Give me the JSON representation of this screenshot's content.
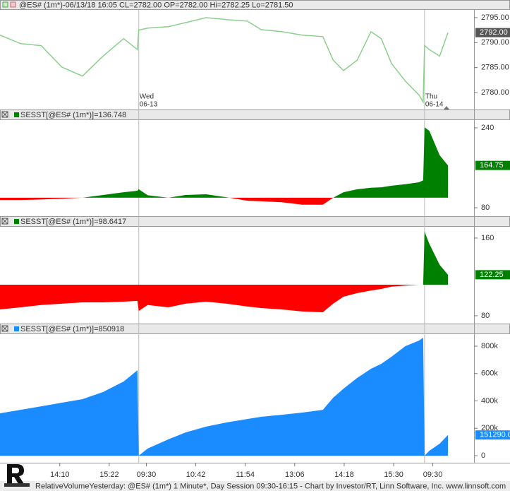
{
  "chart_data": [
    {
      "type": "line",
      "title": "@ES# (1m*)-06/13/18 16:05 CL=2782.00 OP=2782.00 Hi=2782.25 Lo=2781.50",
      "x": [
        0,
        30,
        60,
        90,
        120,
        150,
        180,
        200,
        202,
        215,
        245,
        270,
        300,
        330,
        360,
        380,
        410,
        440,
        470,
        485,
        500,
        520,
        540,
        555,
        570,
        590,
        610,
        616,
        618,
        625,
        640,
        652
      ],
      "values": [
        2791.5,
        2789.8,
        2789.4,
        2785.1,
        2783.3,
        2787.3,
        2790.8,
        2788.6,
        2792.5,
        2792.9,
        2793.2,
        2794.0,
        2795.0,
        2794.6,
        2794.3,
        2792.6,
        2792.2,
        2791.5,
        2791.2,
        2786.5,
        2784.4,
        2786.5,
        2792.2,
        2790.8,
        2785.8,
        2782.3,
        2779.5,
        2778.1,
        2789.4,
        2788.6,
        2787.3,
        2792
      ],
      "value_labels": [
        null,
        null,
        null,
        null,
        null,
        null,
        null,
        null,
        null,
        null,
        null,
        null,
        null,
        null,
        null,
        null,
        null,
        null,
        null,
        null,
        null,
        null,
        null,
        null,
        null,
        null,
        null,
        null,
        null,
        null,
        null,
        "2792.00"
      ],
      "color": "#8ccf8c",
      "label_color": "#555555",
      "ylim": [
        2776.75,
        2796.55
      ],
      "yticks": [
        {
          "value": 2795,
          "label": "2795.00"
        },
        {
          "value": 2790,
          "label": "2790.00"
        },
        {
          "value": 2785,
          "label": "2785.00"
        },
        {
          "value": 2780,
          "label": "2780.00"
        }
      ],
      "annotations": [
        {
          "x": 202,
          "text": [
            "Wed",
            "06-13"
          ]
        },
        {
          "x": 618,
          "text": [
            "Thu",
            "06-14"
          ]
        }
      ]
    },
    {
      "type": "area",
      "title": "SESST[@ES# (1m*)]=136.748",
      "x": [
        0,
        30,
        60,
        90,
        120,
        150,
        180,
        200,
        202,
        215,
        245,
        270,
        300,
        330,
        360,
        380,
        410,
        440,
        470,
        485,
        500,
        520,
        540,
        555,
        570,
        590,
        610,
        616,
        618,
        625,
        640,
        652
      ],
      "values": [
        95.5,
        95.5,
        96.5,
        98,
        100,
        105.5,
        111,
        114,
        117,
        105,
        100,
        105.5,
        107,
        101,
        94,
        93,
        91,
        86,
        86,
        100,
        111,
        117,
        120,
        121,
        124,
        127,
        131,
        135,
        241,
        234,
        185,
        164.75
      ],
      "value_labels": [
        null,
        null,
        null,
        null,
        null,
        null,
        null,
        null,
        null,
        null,
        null,
        null,
        null,
        null,
        null,
        null,
        null,
        null,
        null,
        null,
        null,
        null,
        null,
        null,
        null,
        null,
        null,
        null,
        null,
        null,
        null,
        "164.75"
      ],
      "color": "#008000",
      "negative_color": "#ff0000",
      "baseline": 100,
      "ylim": [
        64.5,
        255.5
      ],
      "yticks": [
        240,
        80
      ]
    },
    {
      "type": "area",
      "title": "SESST[@ES# (1m*)]=98.6417",
      "x": [
        0,
        30,
        60,
        90,
        120,
        150,
        180,
        200,
        202,
        215,
        245,
        270,
        300,
        330,
        360,
        380,
        410,
        440,
        470,
        485,
        500,
        520,
        540,
        555,
        570,
        590,
        610,
        616,
        618,
        625,
        640,
        652
      ],
      "values": [
        86.5,
        88.7,
        91,
        92.4,
        93.8,
        93.8,
        94.5,
        95.3,
        85,
        91,
        88.7,
        92.4,
        94.5,
        92.4,
        89.5,
        88,
        86.5,
        84.4,
        83.6,
        92.4,
        99.6,
        103.3,
        106,
        107.6,
        110,
        111,
        112,
        112,
        166.5,
        154,
        132.4,
        122.25
      ],
      "value_labels": [
        null,
        null,
        null,
        null,
        null,
        null,
        null,
        null,
        null,
        null,
        null,
        null,
        null,
        null,
        null,
        null,
        null,
        null,
        null,
        null,
        null,
        null,
        null,
        null,
        null,
        null,
        null,
        null,
        null,
        null,
        null,
        "122.25"
      ],
      "color": "#008000",
      "negative_color": "#ff0000",
      "baseline": 112,
      "ylim": [
        72.7,
        171.6
      ],
      "yticks": [
        160,
        80
      ]
    },
    {
      "type": "area",
      "title": "SESST[@ES# (1m*)]=850918",
      "x": [
        0,
        30,
        60,
        90,
        120,
        150,
        180,
        200,
        202,
        215,
        245,
        270,
        300,
        330,
        360,
        380,
        410,
        440,
        470,
        485,
        500,
        520,
        540,
        555,
        570,
        590,
        610,
        616,
        618,
        625,
        640,
        652
      ],
      "values": [
        309700,
        335000,
        361000,
        387000,
        413000,
        465000,
        542000,
        624000,
        0,
        52000,
        119000,
        170000,
        212000,
        243000,
        268000,
        284000,
        299000,
        315000,
        335000,
        423000,
        490000,
        568000,
        635000,
        671000,
        723000,
        800000,
        841000,
        862000,
        0,
        36000,
        88000,
        151290
      ],
      "value_labels": [
        null,
        null,
        null,
        null,
        null,
        null,
        null,
        null,
        null,
        null,
        null,
        null,
        null,
        null,
        null,
        null,
        null,
        null,
        null,
        null,
        null,
        null,
        null,
        null,
        null,
        null,
        null,
        null,
        null,
        null,
        null,
        "151290.00"
      ],
      "color": "#1a8cff",
      "baseline": 0,
      "ylim": [
        -51600,
        887700
      ],
      "yticks": [
        {
          "value": 800000,
          "label": "800k"
        },
        {
          "value": 600000,
          "label": "600k"
        },
        {
          "value": 400000,
          "label": "400k"
        },
        {
          "value": 200000,
          "label": "200k"
        },
        0
      ],
      "xlim": [
        0,
        690
      ],
      "xticks": [
        {
          "value": 87,
          "label": "14:10"
        },
        {
          "value": 159,
          "label": "15:22"
        },
        {
          "value": 213,
          "label": "09:30"
        },
        {
          "value": 285,
          "label": "10:42"
        },
        {
          "value": 357,
          "label": "11:54"
        },
        {
          "value": 429,
          "label": "13:06"
        },
        {
          "value": 501,
          "label": "14:18"
        },
        {
          "value": 573,
          "label": "15:30"
        },
        {
          "value": 630,
          "label": "09:30"
        }
      ],
      "session_breaks": [
        202,
        618
      ]
    }
  ],
  "footer": {
    "text": "RelativeVolumeYesterday: @ES# (1m*) 1 Minute*, Day Session 09:30-16:15 - Chart by Investor/RT, Linn Software, Inc. www.linnsoft.com"
  }
}
